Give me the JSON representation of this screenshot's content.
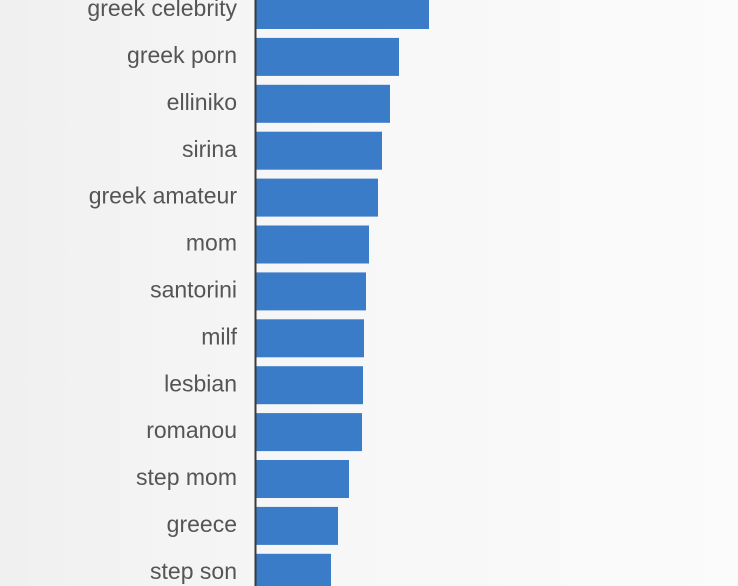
{
  "chart_data": {
    "type": "bar",
    "orientation": "horizontal",
    "categories": [
      "greek celebrity",
      "greek porn",
      "elliniko",
      "sirina",
      "greek amateur",
      "mom",
      "santorini",
      "milf",
      "lesbian",
      "romanou",
      "step mom",
      "greece",
      "step son"
    ],
    "values": [
      173,
      143,
      134,
      126,
      122,
      113,
      110,
      108,
      107,
      106,
      93,
      82,
      75
    ],
    "color": "#3b7cc8",
    "xlim": [
      0,
      482
    ]
  }
}
